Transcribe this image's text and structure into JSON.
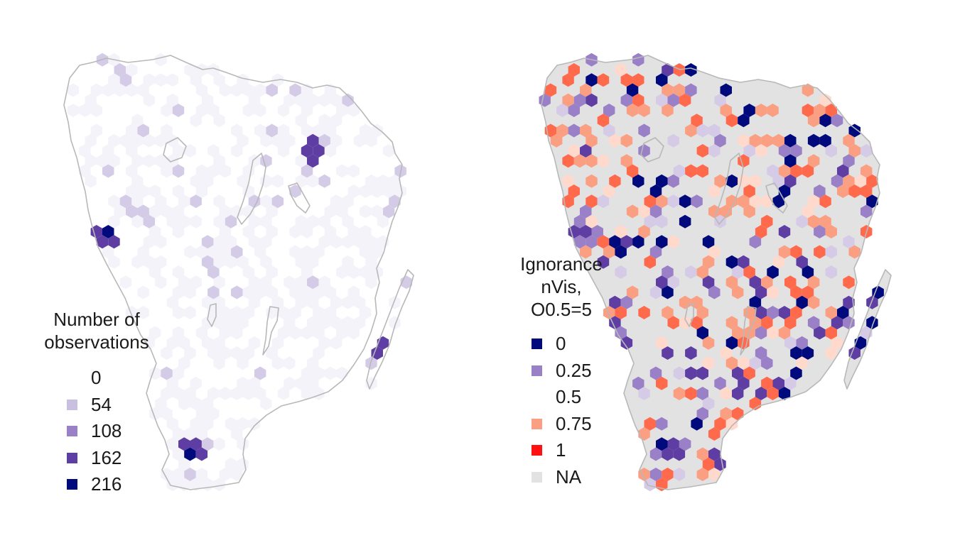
{
  "panels": [
    {
      "name": "observations",
      "legend": {
        "title_lines": [
          "Number of",
          "observations"
        ],
        "items": [
          {
            "label": "0",
            "color": "#ffffff"
          },
          {
            "label": "54",
            "color": "#c9bfe1"
          },
          {
            "label": "108",
            "color": "#9a80c6"
          },
          {
            "label": "162",
            "color": "#5e3ea3"
          },
          {
            "label": "216",
            "color": "#000a7c"
          }
        ]
      }
    },
    {
      "name": "ignorance",
      "legend": {
        "title_lines": [
          "Ignorance",
          "nVis,",
          "O0.5=5"
        ],
        "items": [
          {
            "label": "0",
            "color": "#000a7c"
          },
          {
            "label": "0.25",
            "color": "#9a80c6"
          },
          {
            "label": "0.5",
            "color": "#ffffff"
          },
          {
            "label": "0.75",
            "color": "#fb9f83"
          },
          {
            "label": "1",
            "color": "#ff1111"
          },
          {
            "label": "NA",
            "color": "#e2e2e2"
          }
        ]
      }
    }
  ],
  "colors": {
    "outline": "#b8b8b8",
    "land_na": "#e2e2e2"
  }
}
